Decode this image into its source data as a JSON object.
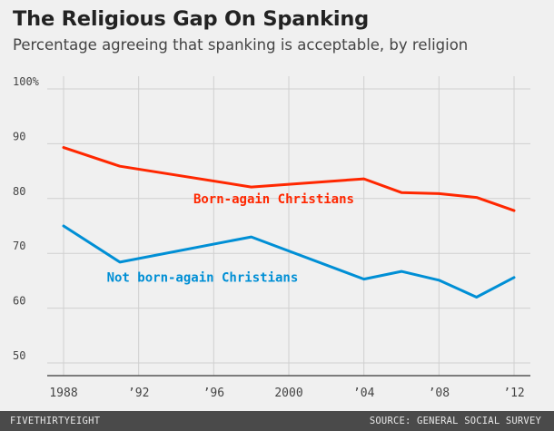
{
  "title": "The Religious Gap On Spanking",
  "subtitle": "Percentage agreeing that spanking is acceptable, by religion",
  "footer": {
    "brand": "FIVETHIRTYEIGHT",
    "source": "SOURCE: GENERAL SOCIAL SURVEY"
  },
  "chart_data": {
    "type": "line",
    "title": "The Religious Gap On Spanking",
    "subtitle": "Percentage agreeing that spanking is acceptable, by religion",
    "xlim": [
      1988,
      2012
    ],
    "ylim": [
      50,
      100
    ],
    "grid": true,
    "x_ticks": [
      {
        "value": 1988,
        "label": "1988"
      },
      {
        "value": 1992,
        "label": "’92"
      },
      {
        "value": 1996,
        "label": "’96"
      },
      {
        "value": 2000,
        "label": "2000"
      },
      {
        "value": 2004,
        "label": "’04"
      },
      {
        "value": 2008,
        "label": "’08"
      },
      {
        "value": 2012,
        "label": "’12"
      }
    ],
    "y_ticks": [
      {
        "value": 100,
        "label": "100%"
      },
      {
        "value": 90,
        "label": "90"
      },
      {
        "value": 80,
        "label": "80"
      },
      {
        "value": 70,
        "label": "70"
      },
      {
        "value": 60,
        "label": "60"
      },
      {
        "value": 50,
        "label": "50"
      }
    ],
    "series": [
      {
        "name": "Born-again Christians",
        "color": "#ff2700",
        "label_at": {
          "x": 1999.2,
          "y": 79.1
        },
        "x": [
          1988,
          1991,
          1998,
          2004,
          2006,
          2008,
          2010,
          2012
        ],
        "values": [
          89.3,
          85.9,
          82.1,
          83.6,
          81.1,
          80.9,
          80.2,
          77.8
        ]
      },
      {
        "name": "Not born-again Christians",
        "color": "#008fd5",
        "label_at": {
          "x": 1995.4,
          "y": 64.8
        },
        "x": [
          1988,
          1991,
          1998,
          2004,
          2006,
          2008,
          2010,
          2012
        ],
        "values": [
          75.0,
          68.4,
          73.0,
          65.3,
          66.7,
          65.1,
          62.0,
          65.6
        ]
      }
    ]
  }
}
